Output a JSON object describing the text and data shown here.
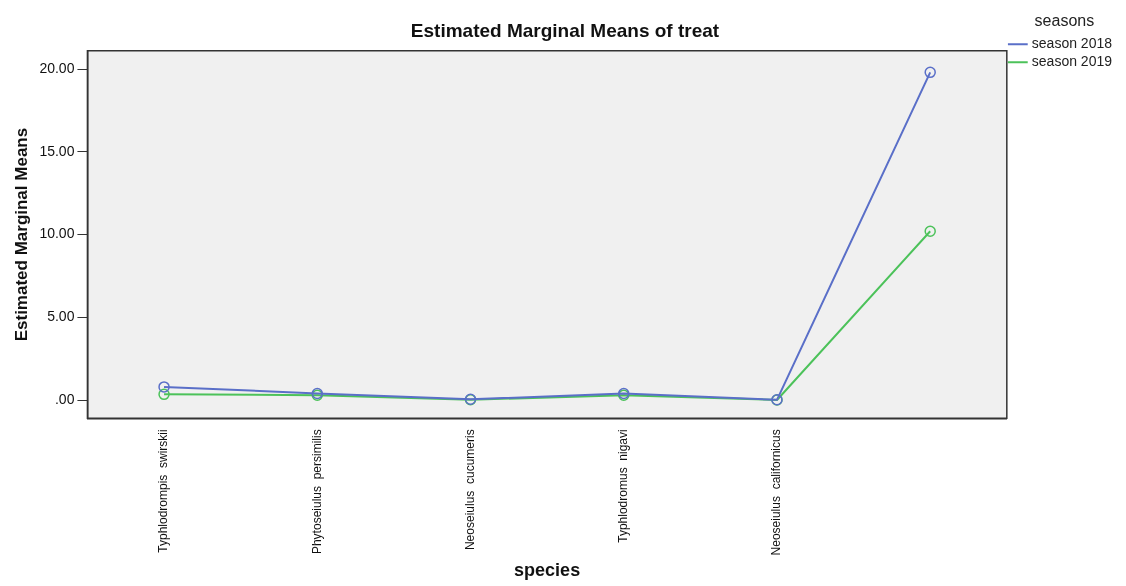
{
  "chart_data": {
    "type": "line",
    "title": "Estimated Marginal Means of treat",
    "xlabel": "species",
    "ylabel": "Estimated Marginal Means",
    "legend_title": "seasons",
    "categories": [
      "Typhlodrompis  swirskii",
      "Phytoseiulus  persimilis",
      "Neoseiulus  cucumeris",
      "Typhlodromus  nigavi",
      "Neoseiulus  californicus",
      null
    ],
    "series": [
      {
        "name": "season 2018",
        "color": "#5a6fc8",
        "values": [
          0.8,
          0.4,
          0.05,
          0.4,
          0.02,
          19.8
        ]
      },
      {
        "name": "season 2019",
        "color": "#4cc25a",
        "values": [
          0.35,
          0.3,
          0.02,
          0.3,
          0.01,
          10.2
        ]
      }
    ],
    "ylim": [
      -1.1,
      21.1
    ],
    "yticks": [
      {
        "value": 0,
        "label": ".00"
      },
      {
        "value": 5,
        "label": "5.00"
      },
      {
        "value": 10,
        "label": "10.00"
      },
      {
        "value": 15,
        "label": "15.00"
      },
      {
        "value": 20,
        "label": "20.00"
      }
    ],
    "grid": false,
    "legend": "top right",
    "marker": "circle",
    "line_style": "solid"
  }
}
